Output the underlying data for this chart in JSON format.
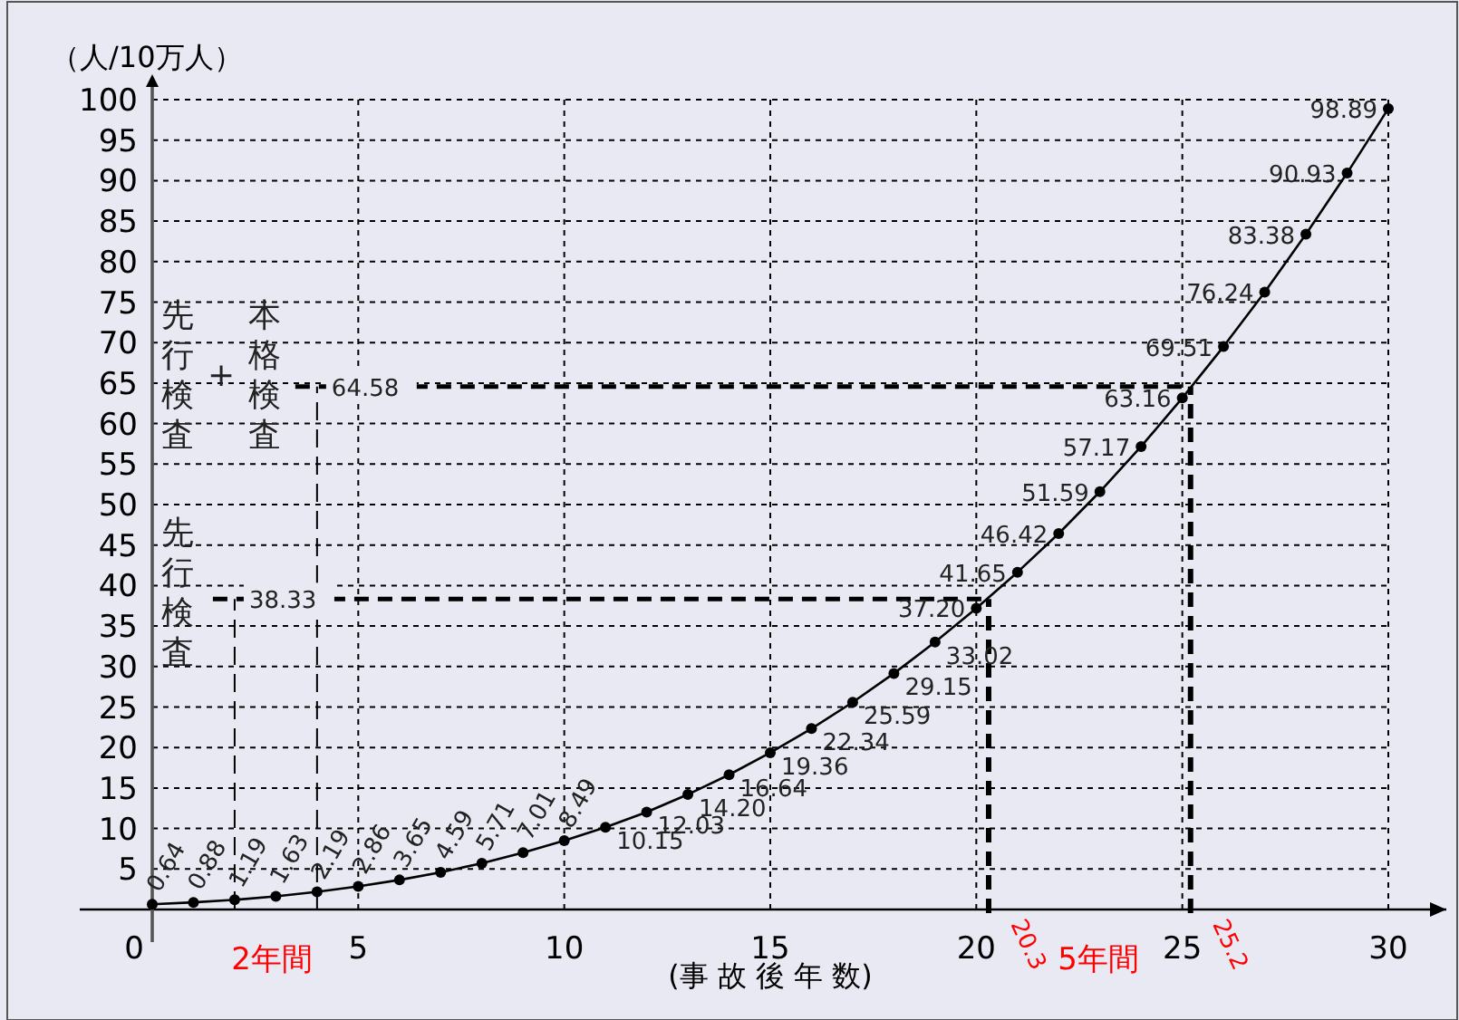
{
  "chart_data": {
    "type": "line",
    "xlabel": "(事 故 後 年 数)",
    "ylabel": "（人/10万人）",
    "x": [
      0,
      1,
      2,
      3,
      4,
      5,
      6,
      7,
      8,
      9,
      10,
      11,
      12,
      13,
      14,
      15,
      16,
      17,
      18,
      19,
      20,
      21,
      22,
      23,
      24,
      25,
      26,
      27,
      28,
      29,
      30
    ],
    "series": [
      {
        "color": "#000000",
        "values": [
          0.64,
          0.88,
          1.19,
          1.63,
          2.19,
          2.86,
          3.65,
          4.59,
          5.71,
          7.01,
          8.49,
          10.15,
          12.03,
          14.2,
          16.64,
          19.36,
          22.34,
          25.59,
          29.15,
          33.02,
          37.2,
          41.65,
          46.42,
          51.59,
          57.17,
          63.16,
          69.51,
          76.24,
          83.38,
          90.93,
          98.89
        ],
        "value_labels": [
          "0.64",
          "0.88",
          "1.19",
          "1.63",
          "2.19",
          "2.86",
          "3.65",
          "4.59",
          "5.71",
          "7.01",
          "8.49",
          "10.15",
          "12.03",
          "14.20",
          "16.64",
          "19.36",
          "22.34",
          "25.59",
          "29.15",
          "33.02",
          "37.20",
          "41.65",
          "46.42",
          "51.59",
          "57.17",
          "63.16",
          "69.51",
          "76.24",
          "83.38",
          "90.93",
          "98.89"
        ]
      }
    ],
    "marker": "circle",
    "line_style": "solid",
    "grid": true,
    "xlim": [
      0,
      30
    ],
    "ylim": [
      0,
      100
    ],
    "xticks": [
      0,
      5,
      10,
      15,
      20,
      25,
      30
    ],
    "yticks": [
      5,
      10,
      15,
      20,
      25,
      30,
      35,
      40,
      45,
      50,
      55,
      60,
      65,
      70,
      75,
      80,
      85,
      90,
      95,
      100
    ],
    "ref_lines": [
      {
        "axis": "y",
        "value": 38.33,
        "label": "38.33",
        "line_style": "dashed"
      },
      {
        "axis": "y",
        "value": 64.58,
        "label": "64.58",
        "line_style": "dashed"
      },
      {
        "axis": "x",
        "value": 2,
        "line_style": "dashed"
      },
      {
        "axis": "x",
        "value": 4,
        "line_style": "dashed"
      },
      {
        "axis": "x",
        "value": 20.3,
        "label": "20.3",
        "line_style": "dashed"
      },
      {
        "axis": "x",
        "value": 25.2,
        "label": "25.2",
        "line_style": "dashed"
      }
    ],
    "annotations": [
      "先行検査",
      "先行検査 + 本格検査",
      "2年間",
      "5年間"
    ]
  }
}
